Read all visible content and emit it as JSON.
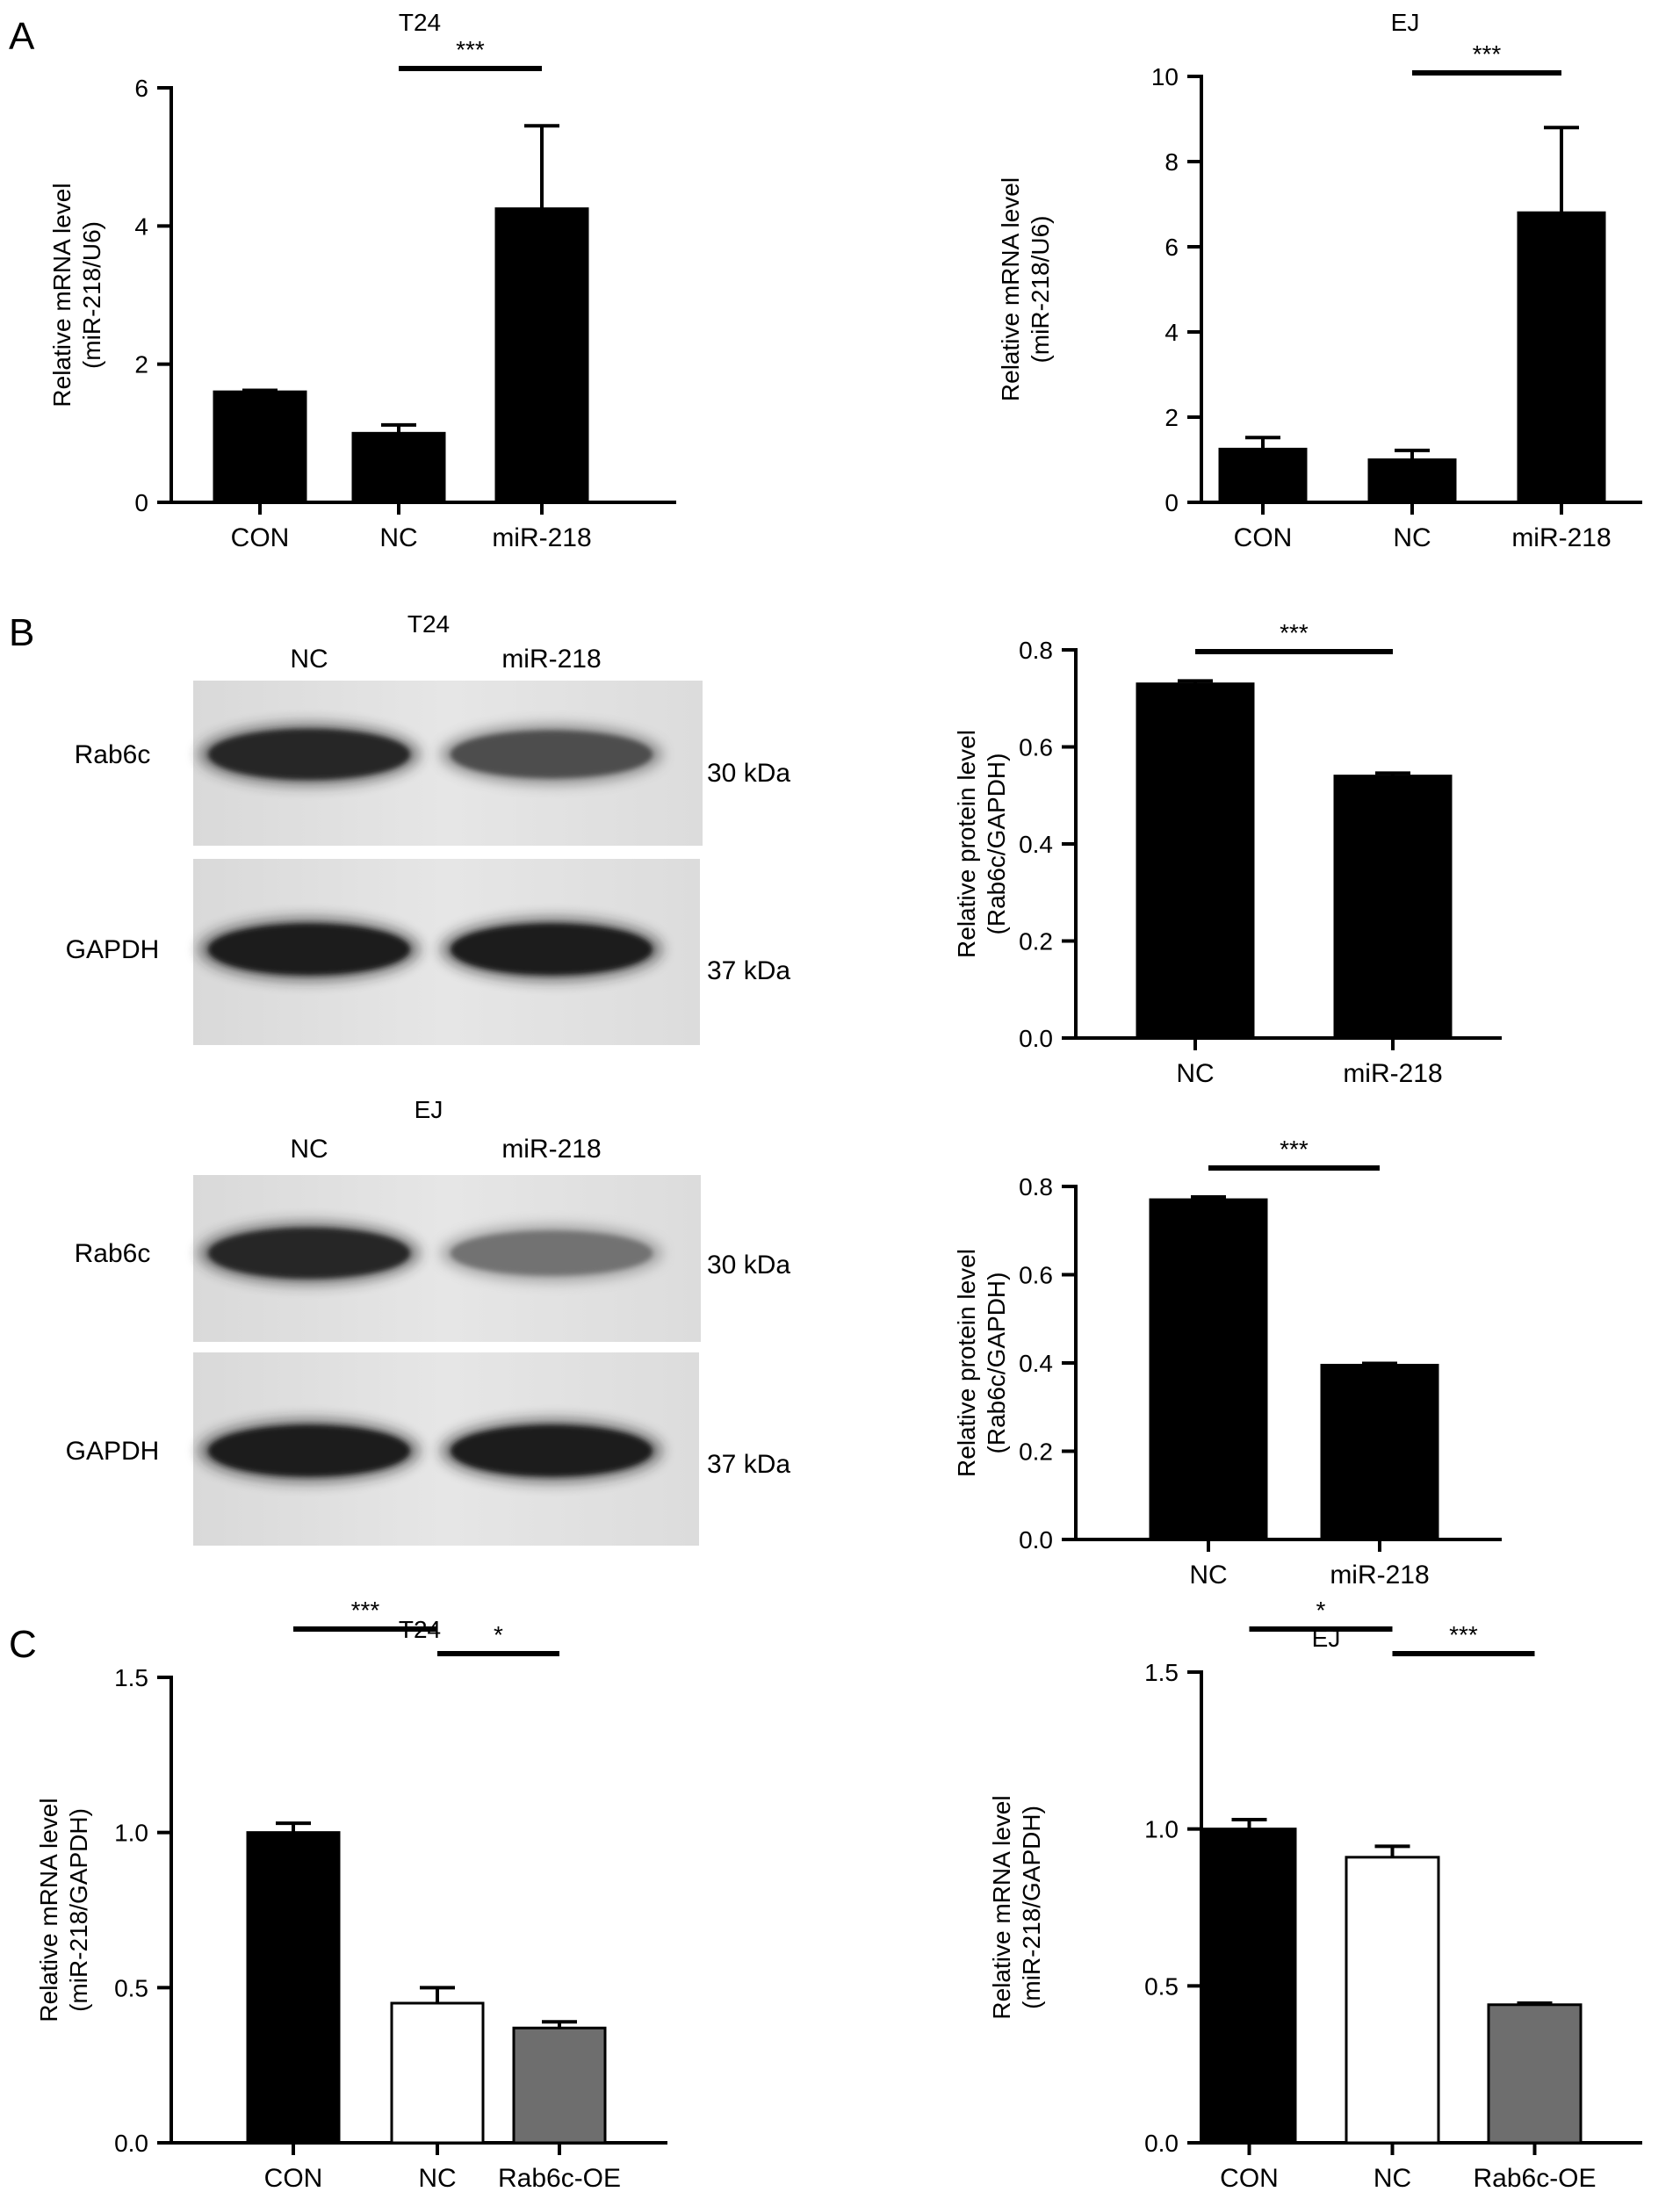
{
  "panels": {
    "a": "A",
    "b": "B",
    "c": "C"
  },
  "colors": {
    "black": "#000000",
    "white": "#ffffff",
    "gray": "#6e6e6e"
  },
  "chart_data": [
    {
      "type": "bar",
      "panel": "A",
      "title": "T24",
      "ylabel": "Relative mRNA level\n(miR-218/U6)",
      "categories": [
        "CON",
        "NC",
        "miR-218"
      ],
      "values": [
        1.6,
        1.0,
        4.25
      ],
      "errors": [
        0.02,
        0.12,
        1.2
      ],
      "colors": [
        "#000000",
        "#000000",
        "#000000"
      ],
      "ylim": [
        0,
        6
      ],
      "yticks": [
        "0",
        "2",
        "4",
        "6"
      ],
      "significance": [
        {
          "from": 1,
          "to": 2,
          "label": "***"
        }
      ]
    },
    {
      "type": "bar",
      "panel": "A",
      "title": "EJ",
      "ylabel": "Relative mRNA level\n(miR-218/U6)",
      "categories": [
        "CON",
        "NC",
        "miR-218"
      ],
      "values": [
        1.25,
        1.0,
        6.8
      ],
      "errors": [
        0.27,
        0.22,
        2.0
      ],
      "colors": [
        "#000000",
        "#000000",
        "#000000"
      ],
      "ylim": [
        0,
        10
      ],
      "yticks": [
        "0",
        "2",
        "4",
        "6",
        "8",
        "10"
      ],
      "significance": [
        {
          "from": 1,
          "to": 2,
          "label": "***"
        }
      ]
    },
    {
      "type": "bar",
      "panel": "B",
      "title": "",
      "ylabel": "Relative protein level\n(Rab6c/GAPDH)",
      "categories": [
        "NC",
        "miR-218"
      ],
      "values": [
        0.73,
        0.54
      ],
      "errors": [
        0.006,
        0.006
      ],
      "colors": [
        "#000000",
        "#000000"
      ],
      "ylim": [
        0,
        0.8
      ],
      "yticks": [
        "0.0",
        "0.2",
        "0.4",
        "0.6",
        "0.8"
      ],
      "significance": [
        {
          "from": 0,
          "to": 1,
          "label": "***"
        }
      ]
    },
    {
      "type": "bar",
      "panel": "B",
      "title": "",
      "ylabel": "Relative protein level\n(Rab6c/GAPDH)",
      "categories": [
        "NC",
        "miR-218"
      ],
      "values": [
        0.77,
        0.395
      ],
      "errors": [
        0.006,
        0.004
      ],
      "colors": [
        "#000000",
        "#000000"
      ],
      "ylim": [
        0,
        0.8
      ],
      "yticks": [
        "0.0",
        "0.2",
        "0.4",
        "0.6",
        "0.8"
      ],
      "significance": [
        {
          "from": 0,
          "to": 1,
          "label": "***"
        }
      ]
    },
    {
      "type": "bar",
      "panel": "C",
      "title": "T24",
      "ylabel": "Relative mRNA level\n(miR-218/GAPDH)",
      "categories": [
        "CON",
        "NC",
        "Rab6c-OE"
      ],
      "values": [
        1.0,
        0.45,
        0.37
      ],
      "errors": [
        0.03,
        0.05,
        0.02
      ],
      "colors": [
        "#000000",
        "#ffffff",
        "#6e6e6e"
      ],
      "ylim": [
        0,
        1.5
      ],
      "yticks": [
        "0.0",
        "0.5",
        "1.0",
        "1.5"
      ],
      "significance": [
        {
          "from": 0,
          "to": 1,
          "label": "***"
        },
        {
          "from": 1,
          "to": 2,
          "label": "*"
        }
      ]
    },
    {
      "type": "bar",
      "panel": "C",
      "title": "EJ",
      "ylabel": "Relative mRNA level\n(miR-218/GAPDH)",
      "categories": [
        "CON",
        "NC",
        "Rab6c-OE"
      ],
      "values": [
        1.0,
        0.91,
        0.44
      ],
      "errors": [
        0.03,
        0.035,
        0.005
      ],
      "colors": [
        "#000000",
        "#ffffff",
        "#6e6e6e"
      ],
      "ylim": [
        0,
        1.5
      ],
      "yticks": [
        "0.0",
        "0.5",
        "1.0",
        "1.5"
      ],
      "significance": [
        {
          "from": 0,
          "to": 1,
          "label": "*"
        },
        {
          "from": 1,
          "to": 2,
          "label": "***"
        }
      ]
    }
  ],
  "blots": [
    {
      "title": "T24",
      "lanes": [
        "NC",
        "miR-218"
      ],
      "bands": [
        {
          "protein": "Rab6c",
          "size": "30 kDa",
          "intensity": [
            0.9,
            0.72
          ]
        },
        {
          "protein": "GAPDH",
          "size": "37 kDa",
          "intensity": [
            0.95,
            0.95
          ]
        }
      ]
    },
    {
      "title": "EJ",
      "lanes": [
        "NC",
        "miR-218"
      ],
      "bands": [
        {
          "protein": "Rab6c",
          "size": "30 kDa",
          "intensity": [
            0.9,
            0.55
          ]
        },
        {
          "protein": "GAPDH",
          "size": "37 kDa",
          "intensity": [
            0.95,
            0.95
          ]
        }
      ]
    }
  ]
}
